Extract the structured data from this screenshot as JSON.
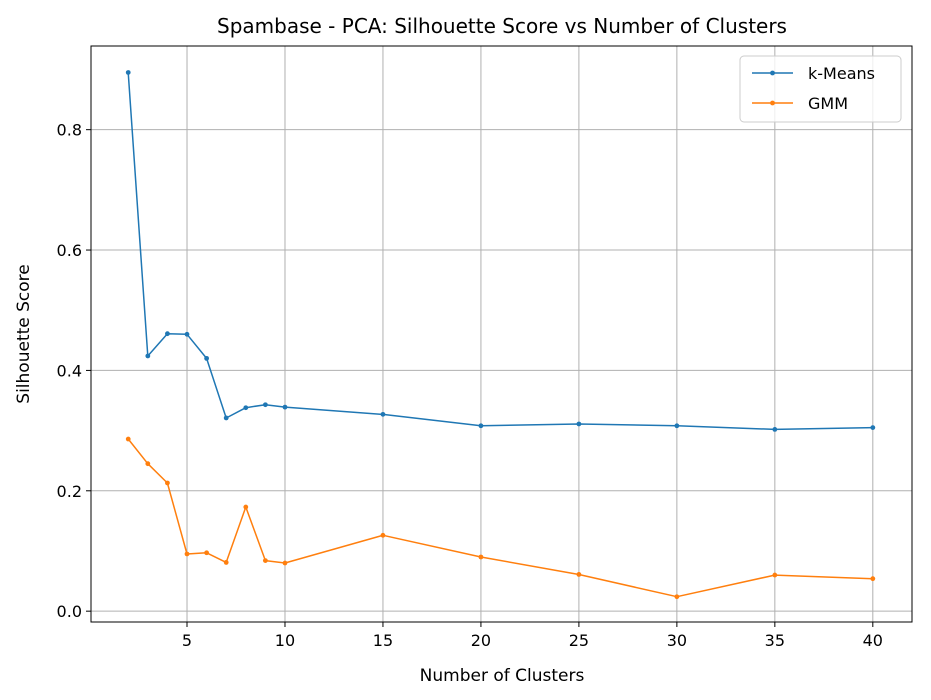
{
  "chart_data": {
    "type": "line",
    "title": "Spambase - PCA: Silhouette Score vs Number of Clusters",
    "xlabel": "Number of Clusters",
    "ylabel": "Silhouette Score",
    "xlim": [
      0.1,
      42
    ],
    "ylim": [
      -0.018,
      0.939
    ],
    "xticks": [
      5,
      10,
      15,
      20,
      25,
      30,
      35,
      40
    ],
    "yticks": [
      0.0,
      0.2,
      0.4,
      0.6,
      0.8
    ],
    "grid": true,
    "legend": "top-right",
    "x": [
      2,
      3,
      4,
      5,
      6,
      7,
      8,
      9,
      10,
      15,
      20,
      25,
      30,
      35,
      40
    ],
    "series": [
      {
        "name": "k-Means",
        "color": "#1f77b4",
        "values": [
          0.895,
          0.424,
          0.461,
          0.46,
          0.42,
          0.321,
          0.338,
          0.343,
          0.339,
          0.327,
          0.308,
          0.311,
          0.308,
          0.302,
          0.305
        ]
      },
      {
        "name": "GMM",
        "color": "#ff7f0e",
        "values": [
          0.286,
          0.245,
          0.213,
          0.095,
          0.097,
          0.081,
          0.173,
          0.084,
          0.08,
          0.126,
          0.09,
          0.061,
          0.024,
          0.06,
          0.054
        ]
      }
    ]
  }
}
